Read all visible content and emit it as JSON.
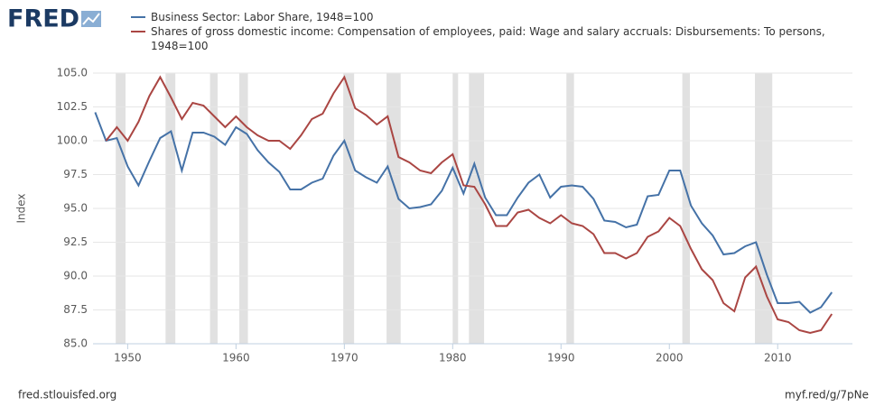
{
  "logo": "FRED",
  "footer": {
    "source": "fred.stlouisfed.org",
    "link": "myf.red/g/7pNe"
  },
  "chart_data": {
    "type": "line",
    "y_label": "Index",
    "x": [
      1947,
      1948,
      1949,
      1950,
      1951,
      1952,
      1953,
      1954,
      1955,
      1956,
      1957,
      1958,
      1959,
      1960,
      1961,
      1962,
      1963,
      1964,
      1965,
      1966,
      1967,
      1968,
      1969,
      1970,
      1971,
      1972,
      1973,
      1974,
      1975,
      1976,
      1977,
      1978,
      1979,
      1980,
      1981,
      1982,
      1983,
      1984,
      1985,
      1986,
      1987,
      1988,
      1989,
      1990,
      1991,
      1992,
      1993,
      1994,
      1995,
      1996,
      1997,
      1998,
      1999,
      2000,
      2001,
      2002,
      2003,
      2004,
      2005,
      2006,
      2007,
      2008,
      2009,
      2010,
      2011,
      2012,
      2013,
      2014,
      2015
    ],
    "series": [
      {
        "name": "Business Sector: Labor Share, 1948=100",
        "color": "#4572a7",
        "values": [
          102.1,
          100,
          100.2,
          98.1,
          96.7,
          98.5,
          100.2,
          100.7,
          97.8,
          100.6,
          100.6,
          100.3,
          99.7,
          101.0,
          100.5,
          99.3,
          98.4,
          97.7,
          96.4,
          96.4,
          96.9,
          97.2,
          98.9,
          100.0,
          97.8,
          97.3,
          96.9,
          98.1,
          95.7,
          95.0,
          95.1,
          95.3,
          96.3,
          98.0,
          96.1,
          98.3,
          95.8,
          94.5,
          94.5,
          95.8,
          96.9,
          97.5,
          95.8,
          96.6,
          96.7,
          96.6,
          95.7,
          94.1,
          94.0,
          93.6,
          93.8,
          95.9,
          96.0,
          97.8,
          97.8,
          95.2,
          93.9,
          93.0,
          91.6,
          91.7,
          92.2,
          92.5,
          90.1,
          88.0,
          88.0,
          88.1,
          87.3,
          87.7,
          88.8
        ]
      },
      {
        "name": "Shares of gross domestic income: Compensation of employees, paid: Wage and salary accruals: Disbursements: To persons, 1948=100",
        "color": "#aa4643",
        "values": [
          null,
          100,
          101.0,
          100.0,
          101.4,
          103.3,
          104.7,
          103.2,
          101.6,
          102.8,
          102.6,
          101.8,
          101.0,
          101.8,
          101.0,
          100.4,
          100.0,
          100.0,
          99.4,
          100.4,
          101.6,
          102.0,
          103.5,
          104.7,
          102.4,
          101.9,
          101.2,
          101.8,
          98.8,
          98.4,
          97.8,
          97.6,
          98.4,
          99.0,
          96.7,
          96.6,
          95.3,
          93.7,
          93.7,
          94.7,
          94.9,
          94.3,
          93.9,
          94.5,
          93.9,
          93.7,
          93.1,
          91.7,
          91.7,
          91.3,
          91.7,
          92.9,
          93.3,
          94.3,
          93.7,
          92.0,
          90.5,
          89.7,
          88.0,
          87.4,
          89.9,
          90.7,
          88.5,
          86.8,
          86.6,
          86.0,
          85.8,
          86.0,
          87.2
        ]
      }
    ],
    "shaded_periods": [
      [
        1948.9,
        1949.8
      ],
      [
        1953.5,
        1954.4
      ],
      [
        1957.6,
        1958.3
      ],
      [
        1960.3,
        1961.1
      ],
      [
        1969.9,
        1970.9
      ],
      [
        1973.9,
        1975.2
      ],
      [
        1980.0,
        1980.5
      ],
      [
        1981.5,
        1982.9
      ],
      [
        1990.5,
        1991.2
      ],
      [
        2001.2,
        2001.9
      ],
      [
        2007.9,
        2009.5
      ]
    ],
    "shade_color": "#e1e1e1",
    "xlim": [
      1946.8,
      2016.9
    ],
    "ylim": [
      85,
      105
    ],
    "xticks": [
      1950,
      1960,
      1970,
      1980,
      1990,
      2000,
      2010
    ],
    "yticks": [
      {
        "value": 85,
        "label": "85.0"
      },
      {
        "value": 87.5,
        "label": "87.5"
      },
      {
        "value": 90,
        "label": "90.0"
      },
      {
        "value": 92.5,
        "label": "92.5"
      },
      {
        "value": 95,
        "label": "95.0"
      },
      {
        "value": 97.5,
        "label": "97.5"
      },
      {
        "value": 100,
        "label": "100.0"
      },
      {
        "value": 102.5,
        "label": "102.5"
      },
      {
        "value": 105,
        "label": "105.0"
      }
    ],
    "grid": true
  }
}
